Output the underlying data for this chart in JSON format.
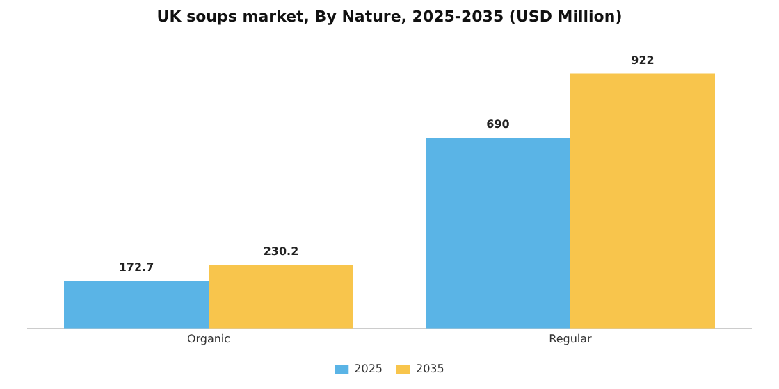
{
  "chart_data": {
    "type": "bar",
    "title": "UK soups market, By Nature, 2025-2035 (USD Million)",
    "categories": [
      "Organic",
      "Regular"
    ],
    "series": [
      {
        "name": "2025",
        "color": "#5ab4e6",
        "values": [
          172.7,
          690
        ]
      },
      {
        "name": "2035",
        "color": "#f8c54c",
        "values": [
          230.2,
          922
        ]
      }
    ],
    "data_labels": true,
    "legend": "bottom",
    "grid": false
  }
}
